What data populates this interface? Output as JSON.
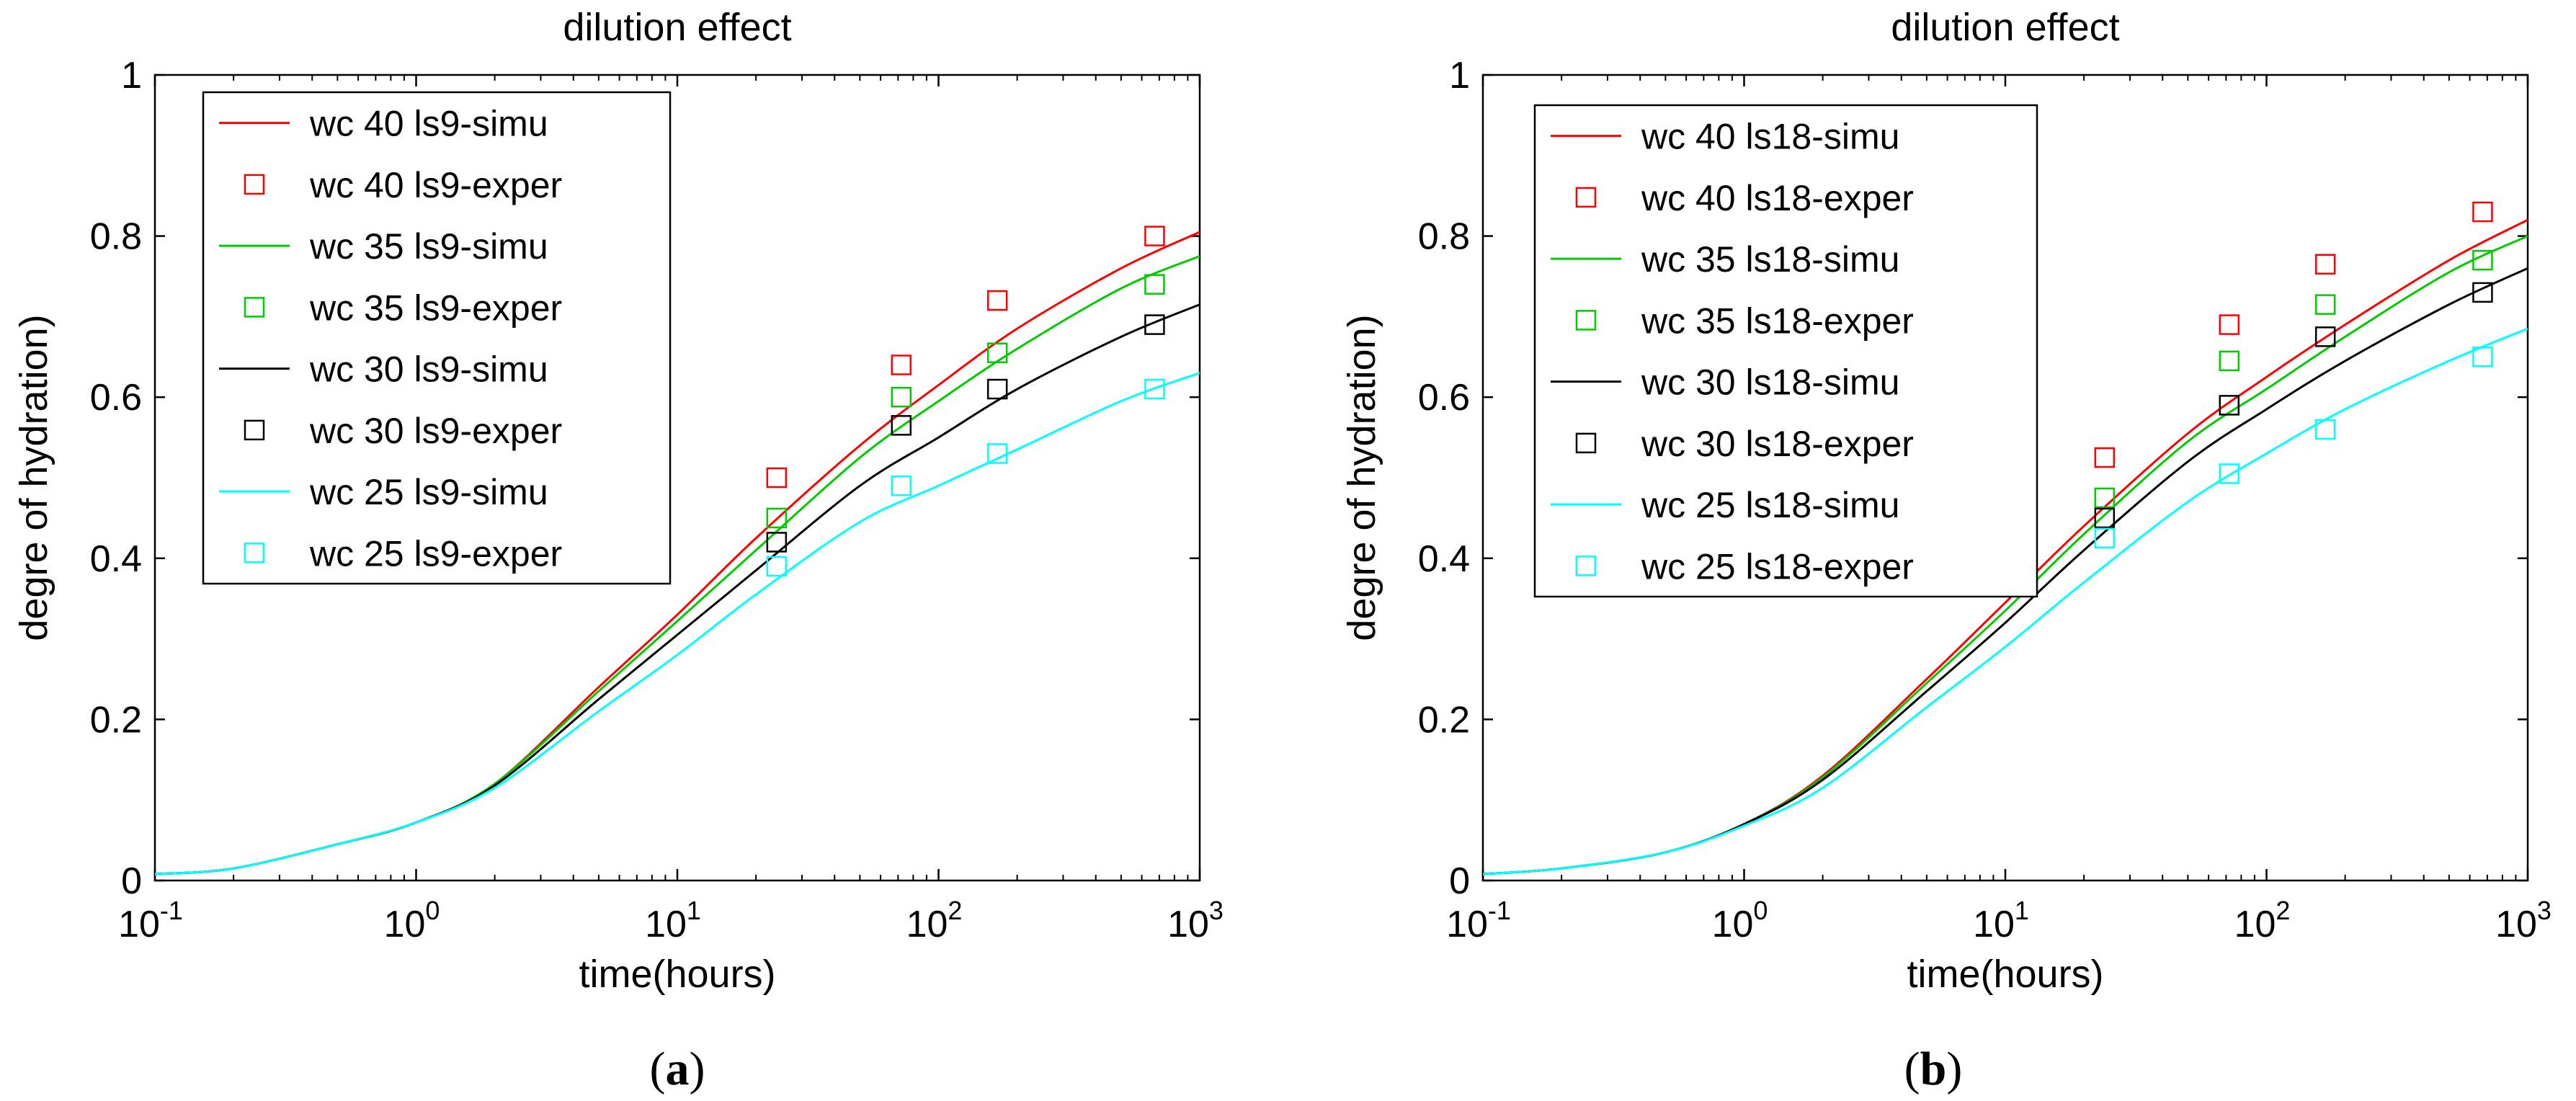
{
  "chart_data": [
    {
      "panel_label": "a",
      "type": "line",
      "title": "dilution effect",
      "xlabel": "time(hours)",
      "ylabel": "degre of hydration)",
      "xscale": "log",
      "xlim": [
        0.1,
        1000
      ],
      "ylim": [
        0,
        1
      ],
      "xticks": [
        {
          "base": "10",
          "exp": "-1",
          "value": 0.1
        },
        {
          "base": "10",
          "exp": "0",
          "value": 1
        },
        {
          "base": "10",
          "exp": "1",
          "value": 10
        },
        {
          "base": "10",
          "exp": "2",
          "value": 100
        },
        {
          "base": "10",
          "exp": "3",
          "value": 1000
        }
      ],
      "yticks": [
        "0",
        "0.2",
        "0.4",
        "0.6",
        "0.8",
        "1"
      ],
      "legend_position": "top-left",
      "series": [
        {
          "name": "wc 40 ls9-simu",
          "kind": "line",
          "color": "#ff0000",
          "x": [
            0.1,
            0.2,
            0.5,
            1,
            2,
            5,
            10,
            20,
            50,
            100,
            200,
            500,
            1000
          ],
          "y": [
            0.008,
            0.015,
            0.045,
            0.072,
            0.12,
            0.24,
            0.33,
            0.425,
            0.54,
            0.615,
            0.685,
            0.76,
            0.805
          ]
        },
        {
          "name": "wc 40 ls9-exper",
          "kind": "marker",
          "color": "#ff0000",
          "x": [
            24,
            72,
            168,
            672
          ],
          "y": [
            0.5,
            0.64,
            0.72,
            0.8
          ]
        },
        {
          "name": "wc 35 ls9-simu",
          "kind": "line",
          "color": "#00cc00",
          "x": [
            0.1,
            0.2,
            0.5,
            1,
            2,
            5,
            10,
            20,
            50,
            100,
            200,
            500,
            1000
          ],
          "y": [
            0.008,
            0.015,
            0.045,
            0.072,
            0.12,
            0.235,
            0.322,
            0.41,
            0.525,
            0.595,
            0.66,
            0.735,
            0.775
          ]
        },
        {
          "name": "wc 35 ls9-exper",
          "kind": "marker",
          "color": "#00cc00",
          "x": [
            24,
            72,
            168,
            672
          ],
          "y": [
            0.45,
            0.6,
            0.655,
            0.74
          ]
        },
        {
          "name": "wc 30 ls9-simu",
          "kind": "line",
          "color": "#000000",
          "x": [
            0.1,
            0.2,
            0.5,
            1,
            2,
            5,
            10,
            20,
            50,
            100,
            200,
            500,
            1000
          ],
          "y": [
            0.008,
            0.015,
            0.045,
            0.072,
            0.118,
            0.225,
            0.305,
            0.385,
            0.49,
            0.55,
            0.61,
            0.675,
            0.715
          ]
        },
        {
          "name": "wc 30 ls9-exper",
          "kind": "marker",
          "color": "#000000",
          "x": [
            24,
            72,
            168,
            672
          ],
          "y": [
            0.42,
            0.565,
            0.61,
            0.69
          ]
        },
        {
          "name": "wc 25 ls9-simu",
          "kind": "line",
          "color": "#00ffff",
          "x": [
            0.1,
            0.2,
            0.5,
            1,
            2,
            5,
            10,
            20,
            50,
            100,
            200,
            500,
            1000
          ],
          "y": [
            0.008,
            0.015,
            0.045,
            0.072,
            0.115,
            0.21,
            0.28,
            0.355,
            0.445,
            0.49,
            0.535,
            0.595,
            0.63
          ]
        },
        {
          "name": "wc 25 ls9-exper",
          "kind": "marker",
          "color": "#00ffff",
          "x": [
            24,
            72,
            168,
            672
          ],
          "y": [
            0.39,
            0.49,
            0.53,
            0.61
          ]
        }
      ]
    },
    {
      "panel_label": "b",
      "type": "line",
      "title": "dilution effect",
      "xlabel": "time(hours)",
      "ylabel": "degre of hydration)",
      "xscale": "log",
      "xlim": [
        0.1,
        1000
      ],
      "ylim": [
        0,
        1
      ],
      "xticks": [
        {
          "base": "10",
          "exp": "-1",
          "value": 0.1
        },
        {
          "base": "10",
          "exp": "0",
          "value": 1
        },
        {
          "base": "10",
          "exp": "1",
          "value": 10
        },
        {
          "base": "10",
          "exp": "2",
          "value": 100
        },
        {
          "base": "10",
          "exp": "3",
          "value": 1000
        }
      ],
      "yticks": [
        "0",
        "0.2",
        "0.4",
        "0.6",
        "0.8",
        "1"
      ],
      "legend_position": "top-left",
      "series": [
        {
          "name": "wc 40 ls18-simu",
          "kind": "line",
          "color": "#ff0000",
          "x": [
            0.1,
            0.2,
            0.5,
            1,
            2,
            5,
            10,
            20,
            50,
            100,
            200,
            500,
            1000
          ],
          "y": [
            0.008,
            0.015,
            0.035,
            0.07,
            0.13,
            0.25,
            0.345,
            0.44,
            0.555,
            0.625,
            0.69,
            0.77,
            0.82
          ]
        },
        {
          "name": "wc 40 ls18-exper",
          "kind": "marker",
          "color": "#ff0000",
          "x": [
            24,
            72,
            168,
            672
          ],
          "y": [
            0.525,
            0.69,
            0.765,
            0.83
          ]
        },
        {
          "name": "wc 35 ls18-simu",
          "kind": "line",
          "color": "#00cc00",
          "x": [
            0.1,
            0.2,
            0.5,
            1,
            2,
            5,
            10,
            20,
            50,
            100,
            200,
            500,
            1000
          ],
          "y": [
            0.008,
            0.015,
            0.035,
            0.07,
            0.128,
            0.245,
            0.335,
            0.43,
            0.545,
            0.61,
            0.675,
            0.755,
            0.8
          ]
        },
        {
          "name": "wc 35 ls18-exper",
          "kind": "marker",
          "color": "#00cc00",
          "x": [
            24,
            72,
            168,
            672
          ],
          "y": [
            0.475,
            0.645,
            0.715,
            0.77
          ]
        },
        {
          "name": "wc 30 ls18-simu",
          "kind": "line",
          "color": "#000000",
          "x": [
            0.1,
            0.2,
            0.5,
            1,
            2,
            5,
            10,
            20,
            50,
            100,
            200,
            500,
            1000
          ],
          "y": [
            0.008,
            0.015,
            0.035,
            0.07,
            0.125,
            0.235,
            0.32,
            0.41,
            0.52,
            0.585,
            0.645,
            0.715,
            0.76
          ]
        },
        {
          "name": "wc 30 ls18-exper",
          "kind": "marker",
          "color": "#000000",
          "x": [
            24,
            72,
            168,
            672
          ],
          "y": [
            0.45,
            0.59,
            0.675,
            0.73
          ]
        },
        {
          "name": "wc 25 ls18-simu",
          "kind": "line",
          "color": "#00ffff",
          "x": [
            0.1,
            0.2,
            0.5,
            1,
            2,
            5,
            10,
            20,
            50,
            100,
            200,
            500,
            1000
          ],
          "y": [
            0.008,
            0.015,
            0.035,
            0.068,
            0.115,
            0.215,
            0.29,
            0.37,
            0.47,
            0.53,
            0.585,
            0.645,
            0.685
          ]
        },
        {
          "name": "wc 25 ls18-exper",
          "kind": "marker",
          "color": "#00ffff",
          "x": [
            24,
            72,
            168,
            672
          ],
          "y": [
            0.425,
            0.505,
            0.56,
            0.65
          ]
        }
      ]
    }
  ]
}
